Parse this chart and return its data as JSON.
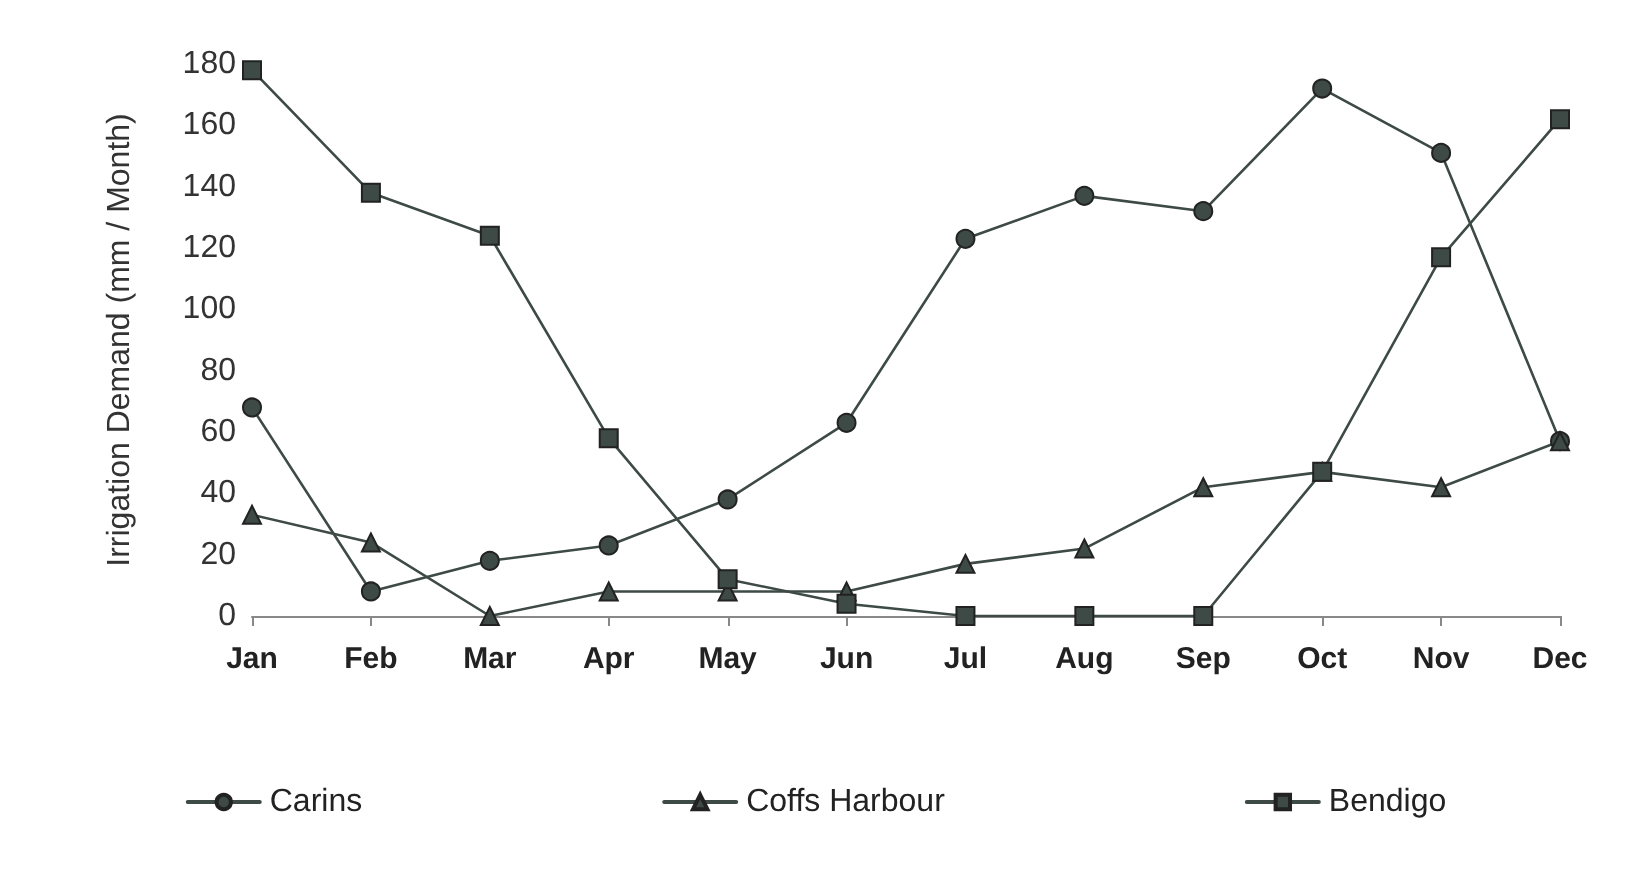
{
  "chart_data": {
    "type": "line",
    "ylabel": "Irrigation Demand (mm / Month)",
    "categories": [
      "Jan",
      "Feb",
      "Mar",
      "Apr",
      "May",
      "Jun",
      "Jul",
      "Aug",
      "Sep",
      "Oct",
      "Nov",
      "Dec"
    ],
    "series": [
      {
        "name": "Carins",
        "color": "#3d4a46",
        "marker": "circle",
        "values": [
          68,
          8,
          18,
          23,
          38,
          63,
          123,
          137,
          132,
          172,
          151,
          57
        ]
      },
      {
        "name": "Coffs Harbour",
        "color": "#3d4a46",
        "marker": "triangle",
        "values": [
          33,
          24,
          0,
          8,
          8,
          8,
          17,
          22,
          42,
          47,
          42,
          57
        ]
      },
      {
        "name": "Bendigo",
        "color": "#3d4a46",
        "marker": "square",
        "values": [
          178,
          138,
          124,
          58,
          12,
          4,
          0,
          0,
          0,
          47,
          117,
          162
        ]
      }
    ],
    "ylim": [
      0,
      180
    ],
    "yticks": [
      0,
      20,
      40,
      60,
      80,
      100,
      120,
      140,
      160,
      180
    ],
    "grid": false,
    "legend": "bottom",
    "line_style": "solid"
  }
}
